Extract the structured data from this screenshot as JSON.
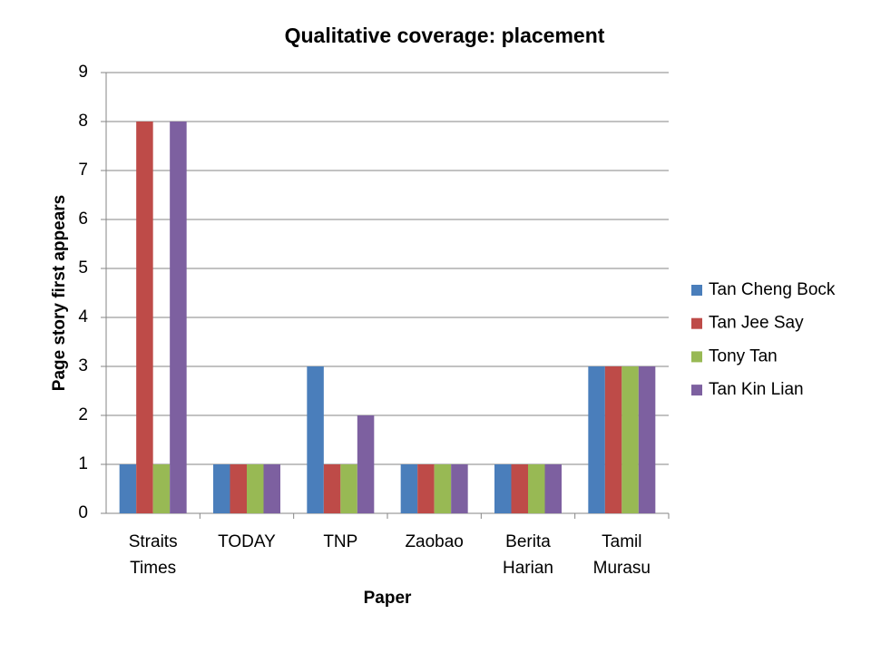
{
  "chart_data": {
    "type": "bar",
    "title": "Qualitative coverage: placement",
    "x_label": "Paper",
    "y_label": "Page story first appears",
    "categories": [
      "Straits Times",
      "TODAY",
      "TNP",
      "Zaobao",
      "Berita Harian",
      "Tamil Murasu"
    ],
    "series": [
      {
        "name": "Tan Cheng Bock",
        "color": "#4a7ebb",
        "values": [
          1,
          1,
          3,
          1,
          1,
          3
        ]
      },
      {
        "name": "Tan Jee Say",
        "color": "#be4b48",
        "values": [
          8,
          1,
          1,
          1,
          1,
          3
        ]
      },
      {
        "name": "Tony Tan",
        "color": "#98b954",
        "values": [
          1,
          1,
          1,
          1,
          1,
          3
        ]
      },
      {
        "name": "Tan Kin Lian",
        "color": "#7d60a0",
        "values": [
          8,
          1,
          2,
          1,
          1,
          3
        ]
      }
    ],
    "ylim": [
      0,
      9
    ],
    "yticks": [
      0,
      1,
      2,
      3,
      4,
      5,
      6,
      7,
      8,
      9
    ],
    "grid": true,
    "legend": "right"
  }
}
